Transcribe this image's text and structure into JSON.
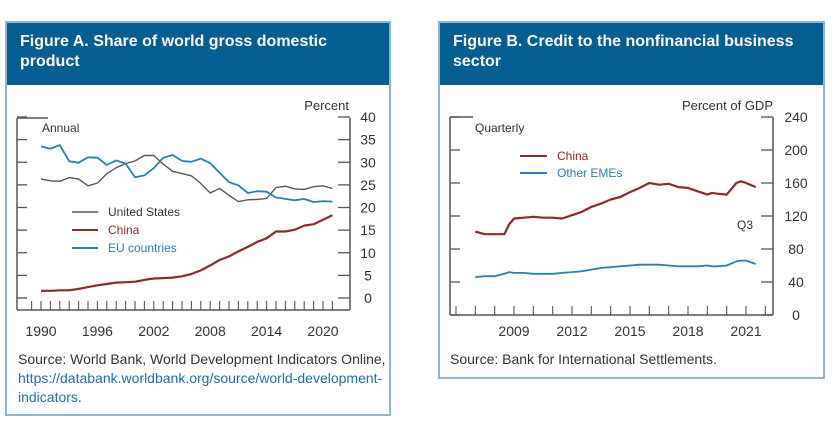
{
  "figures": [
    {
      "title": "Figure A. Share of world gross domestic product",
      "source_prefix": "Source: World Bank, World Development Indicators Online, ",
      "source_link": "https://databank.worldbank.org/source/world-development-indicators",
      "source_suffix": "."
    },
    {
      "title": "Figure B. Credit to the nonfinancial business sector",
      "source_prefix": "Source: Bank for International Settlements.",
      "source_link": "",
      "source_suffix": ""
    }
  ],
  "colors": {
    "header_bg": "#045e91",
    "united_states": "#595959",
    "china": "#8b2a2a",
    "eu": "#2a7fae",
    "other_emes": "#2a7fae"
  },
  "chart_data": [
    {
      "type": "line",
      "title": "Figure A. Share of world gross domestic product",
      "frequency_label": "Annual",
      "ylabel": "Percent",
      "xlabel": "",
      "ylim": [
        0,
        40
      ],
      "yticks": [
        0,
        5,
        10,
        15,
        20,
        25,
        30,
        35,
        40
      ],
      "xlim": [
        1989,
        2022
      ],
      "xticks": [
        1990,
        1996,
        2002,
        2008,
        2014,
        2020
      ],
      "grid": false,
      "legend": "middle-left",
      "x": [
        1990,
        1991,
        1992,
        1993,
        1994,
        1995,
        1996,
        1997,
        1998,
        1999,
        2000,
        2001,
        2002,
        2003,
        2004,
        2005,
        2006,
        2007,
        2008,
        2009,
        2010,
        2011,
        2012,
        2013,
        2014,
        2015,
        2016,
        2017,
        2018,
        2019,
        2020,
        2021
      ],
      "series": [
        {
          "name": "United States",
          "values": [
            26.3,
            25.9,
            25.8,
            26.6,
            26.3,
            24.8,
            25.4,
            27.5,
            28.8,
            29.7,
            30.3,
            31.5,
            31.5,
            29.6,
            28.0,
            27.5,
            27.0,
            25.3,
            23.2,
            24.2,
            22.7,
            21.3,
            21.7,
            21.8,
            22.0,
            24.4,
            24.7,
            24.1,
            24.0,
            24.6,
            24.8,
            24.2
          ],
          "color_key": "united_states"
        },
        {
          "name": "China",
          "values": [
            1.6,
            1.6,
            1.7,
            1.7,
            2.0,
            2.4,
            2.8,
            3.1,
            3.4,
            3.5,
            3.6,
            4.0,
            4.3,
            4.4,
            4.5,
            4.8,
            5.3,
            6.1,
            7.2,
            8.4,
            9.2,
            10.3,
            11.3,
            12.4,
            13.2,
            14.7,
            14.7,
            15.1,
            16.0,
            16.3,
            17.3,
            18.3
          ],
          "color_key": "china"
        },
        {
          "name": "EU countries",
          "values": [
            33.5,
            33.0,
            33.8,
            30.2,
            29.9,
            31.1,
            31.0,
            29.4,
            30.4,
            29.7,
            26.7,
            27.1,
            28.7,
            31.0,
            31.6,
            30.3,
            30.1,
            30.8,
            29.8,
            27.7,
            25.6,
            24.9,
            23.2,
            23.6,
            23.5,
            22.2,
            21.9,
            21.6,
            21.9,
            21.2,
            21.4,
            21.3
          ],
          "color_key": "eu"
        }
      ]
    },
    {
      "type": "line",
      "title": "Figure B. Credit to the nonfinancial business sector",
      "frequency_label": "Quarterly",
      "ylabel": "Percent of GDP",
      "xlabel": "",
      "ylim": [
        0,
        240
      ],
      "yticks": [
        0,
        40,
        80,
        120,
        160,
        200,
        240
      ],
      "xlim": [
        2005.75,
        2022.5
      ],
      "xticks": [
        2009,
        2012,
        2015,
        2018,
        2021
      ],
      "end_annotation": "Q3",
      "grid": false,
      "legend": "top-left",
      "x": [
        2007.0,
        2007.5,
        2008.0,
        2008.5,
        2008.75,
        2009.0,
        2009.5,
        2010.0,
        2010.5,
        2011.0,
        2011.5,
        2012.0,
        2012.5,
        2013.0,
        2013.5,
        2014.0,
        2014.5,
        2015.0,
        2015.5,
        2016.0,
        2016.5,
        2017.0,
        2017.5,
        2018.0,
        2018.5,
        2019.0,
        2019.25,
        2019.5,
        2020.0,
        2020.5,
        2020.75,
        2021.0,
        2021.5
      ],
      "series": [
        {
          "name": "China",
          "values": [
            101,
            98,
            98,
            98,
            110,
            117,
            118,
            119,
            118,
            118,
            117,
            121,
            125,
            131,
            135,
            140,
            143,
            149,
            154,
            160,
            158,
            159,
            155,
            154,
            150,
            146,
            148,
            147,
            146,
            160,
            162,
            160,
            155
          ],
          "color_key": "china"
        },
        {
          "name": "Other EMEs",
          "values": [
            46,
            47,
            47,
            50,
            52,
            51,
            51,
            50,
            50,
            50,
            51,
            52,
            53,
            55,
            57,
            58,
            59,
            60,
            61,
            61,
            61,
            60,
            59,
            59,
            59,
            60,
            59,
            59,
            60,
            65,
            66,
            66,
            62
          ],
          "color_key": "other_emes"
        }
      ]
    }
  ]
}
